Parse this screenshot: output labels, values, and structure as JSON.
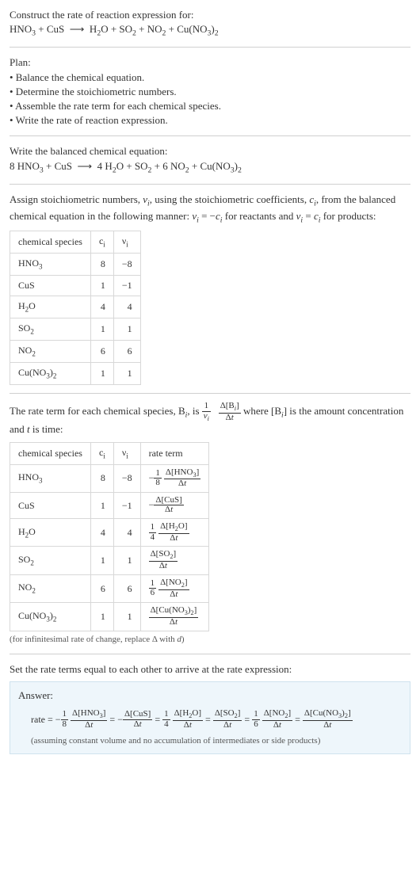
{
  "header": {
    "title": "Construct the rate of reaction expression for:",
    "unbalanced": "HNO<sub>3</sub> + CuS &nbsp;⟶&nbsp; H<sub>2</sub>O + SO<sub>2</sub> + NO<sub>2</sub> + Cu(NO<sub>3</sub>)<sub>2</sub>"
  },
  "plan": {
    "title": "Plan:",
    "items": [
      "Balance the chemical equation.",
      "Determine the stoichiometric numbers.",
      "Assemble the rate term for each chemical species.",
      "Write the rate of reaction expression."
    ]
  },
  "balanced": {
    "title": "Write the balanced chemical equation:",
    "eq": "8 HNO<sub>3</sub> + CuS &nbsp;⟶&nbsp; 4 H<sub>2</sub>O + SO<sub>2</sub> + 6 NO<sub>2</sub> + Cu(NO<sub>3</sub>)<sub>2</sub>"
  },
  "stoich": {
    "intro": "Assign stoichiometric numbers, <i>ν<sub>i</sub></i>, using the stoichiometric coefficients, <i>c<sub>i</sub></i>, from the balanced chemical equation in the following manner: <i>ν<sub>i</sub></i> = −<i>c<sub>i</sub></i> for reactants and <i>ν<sub>i</sub></i> = <i>c<sub>i</sub></i> for products:",
    "headers": [
      "chemical species",
      "c<sub>i</sub>",
      "ν<sub>i</sub>"
    ],
    "rows": [
      {
        "sp": "HNO<sub>3</sub>",
        "c": "8",
        "v": "−8"
      },
      {
        "sp": "CuS",
        "c": "1",
        "v": "−1"
      },
      {
        "sp": "H<sub>2</sub>O",
        "c": "4",
        "v": "4"
      },
      {
        "sp": "SO<sub>2</sub>",
        "c": "1",
        "v": "1"
      },
      {
        "sp": "NO<sub>2</sub>",
        "c": "6",
        "v": "6"
      },
      {
        "sp": "Cu(NO<sub>3</sub>)<sub>2</sub>",
        "c": "1",
        "v": "1"
      }
    ]
  },
  "rateterm": {
    "intro1": "The rate term for each chemical species, B<sub><i>i</i></sub>, is ",
    "intro2": " where [B<sub><i>i</i></sub>] is the amount concentration and <i>t</i> is time:",
    "headers": [
      "chemical species",
      "c<sub>i</sub>",
      "ν<sub>i</sub>",
      "rate term"
    ],
    "rows": [
      {
        "sp": "HNO<sub>3</sub>",
        "c": "8",
        "v": "−8",
        "num": "Δ[HNO<sub>3</sub>]",
        "den": "Δ<i>t</i>",
        "coef": "1",
        "coefden": "8",
        "sign": "−"
      },
      {
        "sp": "CuS",
        "c": "1",
        "v": "−1",
        "num": "Δ[CuS]",
        "den": "Δ<i>t</i>",
        "coef": "",
        "coefden": "",
        "sign": "−"
      },
      {
        "sp": "H<sub>2</sub>O",
        "c": "4",
        "v": "4",
        "num": "Δ[H<sub>2</sub>O]",
        "den": "Δ<i>t</i>",
        "coef": "1",
        "coefden": "4",
        "sign": ""
      },
      {
        "sp": "SO<sub>2</sub>",
        "c": "1",
        "v": "1",
        "num": "Δ[SO<sub>2</sub>]",
        "den": "Δ<i>t</i>",
        "coef": "",
        "coefden": "",
        "sign": ""
      },
      {
        "sp": "NO<sub>2</sub>",
        "c": "6",
        "v": "6",
        "num": "Δ[NO<sub>2</sub>]",
        "den": "Δ<i>t</i>",
        "coef": "1",
        "coefden": "6",
        "sign": ""
      },
      {
        "sp": "Cu(NO<sub>3</sub>)<sub>2</sub>",
        "c": "1",
        "v": "1",
        "num": "Δ[Cu(NO<sub>3</sub>)<sub>2</sub>]",
        "den": "Δ<i>t</i>",
        "coef": "",
        "coefden": "",
        "sign": ""
      }
    ],
    "note": "(for infinitesimal rate of change, replace Δ with <i>d</i>)"
  },
  "final": {
    "title": "Set the rate terms equal to each other to arrive at the rate expression:",
    "answer_label": "Answer:",
    "note": "(assuming constant volume and no accumulation of intermediates or side products)"
  }
}
